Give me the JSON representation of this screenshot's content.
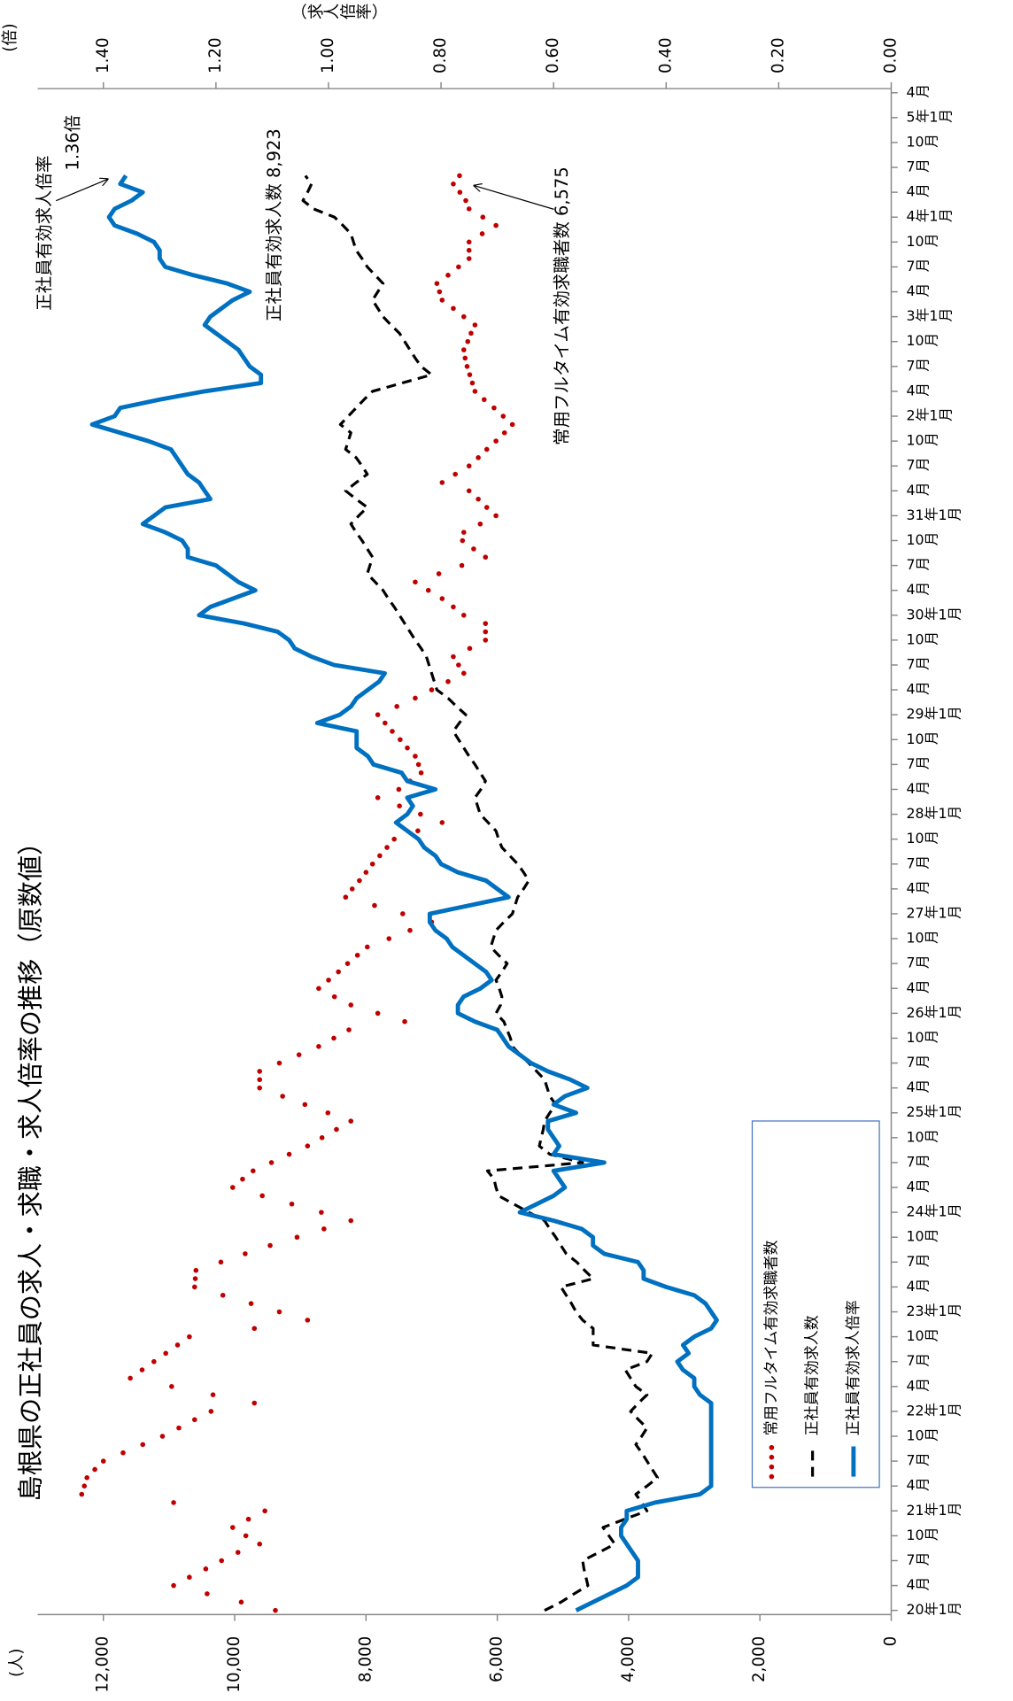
{
  "chart_data": {
    "type": "line",
    "title": "島根県の正社員の求人・求職・求人倍率の推移（原数値）",
    "y_label": "(人)",
    "y2_label": "(倍)",
    "y2_title": "（求人倍率）",
    "categories": [
      "20年1月",
      null,
      null,
      "4月",
      null,
      null,
      "7月",
      null,
      null,
      "10月",
      null,
      null,
      "21年1月",
      null,
      null,
      "4月",
      null,
      null,
      "7月",
      null,
      null,
      "10月",
      null,
      null,
      "22年1月",
      null,
      null,
      "4月",
      null,
      null,
      "7月",
      null,
      null,
      "10月",
      null,
      null,
      "23年1月",
      null,
      null,
      "4月",
      null,
      null,
      "7月",
      null,
      null,
      "10月",
      null,
      null,
      "24年1月",
      null,
      null,
      "4月",
      null,
      null,
      "7月",
      null,
      null,
      "10月",
      null,
      null,
      "25年1月",
      null,
      null,
      "4月",
      null,
      null,
      "7月",
      null,
      null,
      "10月",
      null,
      null,
      "26年1月",
      null,
      null,
      "4月",
      null,
      null,
      "7月",
      null,
      null,
      "10月",
      null,
      null,
      "27年1月",
      null,
      null,
      "4月",
      null,
      null,
      "7月",
      null,
      null,
      "10月",
      null,
      null,
      "28年1月",
      null,
      null,
      "4月",
      null,
      null,
      "7月",
      null,
      null,
      "10月",
      null,
      null,
      "29年1月",
      null,
      null,
      "4月",
      null,
      null,
      "7月",
      null,
      null,
      "10月",
      null,
      null,
      "30年1月",
      null,
      null,
      "4月",
      null,
      null,
      "7月",
      null,
      null,
      "10月",
      null,
      null,
      "31年1月",
      null,
      null,
      "4月",
      null,
      null,
      "7月",
      null,
      null,
      "10月",
      null,
      null,
      "2年1月",
      null,
      null,
      "4月",
      null,
      null,
      "7月",
      null,
      null,
      "10月",
      null,
      null,
      "3年1月",
      null,
      null,
      "4月",
      null,
      null,
      "7月",
      null,
      null,
      "10月",
      null,
      null,
      "4年1月",
      null,
      null,
      "4月",
      null,
      null,
      "7月",
      null,
      null,
      "10月",
      null,
      null,
      "5年1月",
      null,
      null,
      "4月"
    ],
    "series": [
      {
        "name": "常用フルタイム有効求職者数",
        "color": "#c00000",
        "style": "dotted",
        "values": [
          9380,
          9900,
          10420,
          10930,
          10690,
          10440,
          10200,
          9950,
          9620,
          9830,
          10030,
          9790,
          9540,
          10930,
          12330,
          12290,
          12250,
          12130,
          12000,
          11700,
          11400,
          11100,
          10850,
          10610,
          10360,
          9700,
          10330,
          10960,
          11590,
          11410,
          11230,
          11050,
          10870,
          10690,
          9700,
          8890,
          9320,
          9750,
          10180,
          10610,
          10600,
          10590,
          10210,
          9840,
          9460,
          9050,
          8640,
          8230,
          8680,
          9130,
          9580,
          10030,
          9880,
          9720,
          9440,
          9170,
          8890,
          8670,
          8450,
          8230,
          8580,
          8930,
          9270,
          9620,
          9620,
          9620,
          9320,
          9020,
          8720,
          8490,
          8260,
          7410,
          7820,
          8230,
          8480,
          8720,
          8570,
          8420,
          8280,
          8130,
          7980,
          7650,
          7330,
          7000,
          7440,
          7870,
          8310,
          8210,
          8100,
          8000,
          7900,
          7790,
          7680,
          7570,
          7210,
          6840,
          7170,
          7490,
          7820,
          7500,
          7330,
          7160,
          7200,
          7250,
          7370,
          7480,
          7600,
          7710,
          7820,
          7530,
          7250,
          7000,
          6750,
          6510,
          6590,
          6670,
          6420,
          6180,
          6180,
          6180,
          6510,
          6670,
          6840,
          7050,
          7250,
          6890,
          6540,
          6180,
          6360,
          6530,
          6510,
          6260,
          6020,
          6160,
          6290,
          6430,
          6840,
          6640,
          6430,
          6290,
          6160,
          6020,
          5890,
          5770,
          5910,
          6050,
          6200,
          6340,
          6380,
          6420,
          6460,
          6490,
          6510,
          6450,
          6400,
          6340,
          6510,
          6670,
          6840,
          6880,
          6920,
          6750,
          6590,
          6430,
          6430,
          6430,
          6230,
          6020,
          6220,
          6430,
          6480,
          6570,
          6670,
          6575,
          null,
          null,
          null,
          null,
          null,
          null,
          null,
          null,
          null,
          null
        ]
      },
      {
        "name": "正社員有効求人数",
        "color": "#000000",
        "style": "dashed",
        "values": [
          5280,
          5030,
          4830,
          4620,
          4650,
          4680,
          4700,
          4450,
          4210,
          4300,
          4390,
          4060,
          3720,
          3800,
          3890,
          3720,
          3560,
          3640,
          3720,
          3800,
          3890,
          3800,
          3720,
          3850,
          3970,
          3850,
          3720,
          3890,
          3970,
          4050,
          3720,
          3640,
          4540,
          4540,
          4540,
          4700,
          4800,
          4870,
          4950,
          5030,
          4540,
          4670,
          4790,
          4950,
          5030,
          5110,
          5200,
          5280,
          5520,
          5750,
          5980,
          6020,
          6050,
          6150,
          4700,
          5200,
          5360,
          5330,
          5300,
          5280,
          5200,
          5110,
          5200,
          5240,
          5280,
          5400,
          5520,
          5650,
          5770,
          5800,
          5850,
          5900,
          6020,
          5950,
          5930,
          5970,
          6020,
          5930,
          5850,
          5980,
          6100,
          6060,
          6020,
          5900,
          5770,
          5730,
          5690,
          5600,
          5520,
          5600,
          5690,
          5810,
          5930,
          5980,
          6020,
          6140,
          6260,
          6300,
          6340,
          6250,
          6180,
          6260,
          6340,
          6430,
          6510,
          6590,
          6670,
          6580,
          6480,
          6620,
          6750,
          6920,
          6960,
          7000,
          7040,
          7080,
          7160,
          7250,
          7330,
          7410,
          7490,
          7570,
          7660,
          7740,
          7860,
          7980,
          7940,
          7900,
          7980,
          8060,
          8150,
          8230,
          8110,
          7980,
          8150,
          8310,
          8150,
          7980,
          8060,
          8150,
          8310,
          8270,
          8230,
          8390,
          8270,
          8150,
          8030,
          7900,
          7450,
          7000,
          7160,
          7250,
          7330,
          7410,
          7490,
          7620,
          7740,
          7820,
          7900,
          7820,
          7740,
          7860,
          7980,
          8060,
          8150,
          8190,
          8230,
          8350,
          8480,
          8800,
          8960,
          8890,
          8830,
          8923,
          null,
          null,
          null,
          null,
          null,
          null,
          null,
          null,
          null,
          null
        ]
      },
      {
        "name": "正社員有効求人倍率",
        "color": "#0070c0",
        "style": "solid",
        "axis": "y2",
        "values": [
          0.56,
          0.53,
          0.5,
          0.47,
          0.45,
          0.45,
          0.45,
          0.46,
          0.47,
          0.48,
          0.48,
          0.47,
          0.47,
          0.42,
          0.34,
          0.32,
          0.32,
          0.32,
          0.32,
          0.32,
          0.32,
          0.32,
          0.32,
          0.32,
          0.32,
          0.32,
          0.34,
          0.35,
          0.35,
          0.37,
          0.38,
          0.36,
          0.37,
          0.35,
          0.32,
          0.31,
          0.32,
          0.33,
          0.35,
          0.4,
          0.44,
          0.44,
          0.45,
          0.51,
          0.53,
          0.53,
          0.55,
          0.6,
          0.66,
          0.63,
          0.6,
          0.58,
          0.59,
          0.6,
          0.51,
          0.6,
          0.59,
          0.6,
          0.61,
          0.61,
          0.56,
          0.6,
          0.58,
          0.54,
          0.57,
          0.61,
          0.64,
          0.66,
          0.68,
          0.69,
          0.7,
          0.74,
          0.77,
          0.77,
          0.76,
          0.73,
          0.71,
          0.72,
          0.74,
          0.76,
          0.78,
          0.79,
          0.81,
          0.82,
          0.82,
          0.75,
          0.68,
          0.7,
          0.72,
          0.77,
          0.8,
          0.81,
          0.83,
          0.84,
          0.86,
          0.88,
          0.86,
          0.85,
          0.86,
          0.81,
          0.86,
          0.87,
          0.92,
          0.93,
          0.95,
          0.95,
          0.95,
          1.02,
          0.98,
          0.96,
          0.95,
          0.93,
          0.91,
          0.9,
          0.99,
          1.03,
          1.06,
          1.07,
          1.09,
          1.15,
          1.23,
          1.21,
          1.17,
          1.13,
          1.16,
          1.18,
          1.2,
          1.25,
          1.25,
          1.26,
          1.29,
          1.33,
          1.31,
          1.29,
          1.21,
          1.22,
          1.23,
          1.25,
          1.26,
          1.27,
          1.28,
          1.32,
          1.37,
          1.42,
          1.38,
          1.37,
          1.3,
          1.22,
          1.12,
          1.12,
          1.14,
          1.15,
          1.16,
          1.18,
          1.2,
          1.22,
          1.21,
          1.19,
          1.17,
          1.14,
          1.18,
          1.24,
          1.29,
          1.3,
          1.3,
          1.31,
          1.34,
          1.38,
          1.39,
          1.38,
          1.35,
          1.33,
          1.37,
          1.36,
          null,
          null,
          null,
          null,
          null,
          null,
          null,
          null,
          null,
          null
        ]
      }
    ],
    "ylim": [
      0,
      13000
    ],
    "yticks": [
      0,
      {
        "value": 2000,
        "label": "2,000"
      },
      {
        "value": 4000,
        "label": "4,000"
      },
      {
        "value": 6000,
        "label": "6,000"
      },
      {
        "value": 8000,
        "label": "8,000"
      },
      {
        "value": 10000,
        "label": "10,000"
      },
      {
        "value": 12000,
        "label": "12,000"
      }
    ],
    "y2lim": [
      0,
      1.5167
    ],
    "y2ticks": [
      {
        "value": 0,
        "label": "0.00"
      },
      {
        "value": 0.2,
        "label": "0.20"
      },
      {
        "value": 0.4,
        "label": "0.40"
      },
      {
        "value": 0.6,
        "label": "0.60"
      },
      {
        "value": 0.8,
        "label": "0.80"
      },
      {
        "value": 1,
        "label": "1.00"
      },
      {
        "value": 1.2,
        "label": "1.20"
      },
      {
        "value": 1.4,
        "label": "1.40"
      }
    ],
    "annotations": [
      "正社員有効求人倍率",
      "1.36倍",
      "正社員有効求人数 8,923",
      "常用フルタイム有効求職者数 6,575"
    ]
  }
}
